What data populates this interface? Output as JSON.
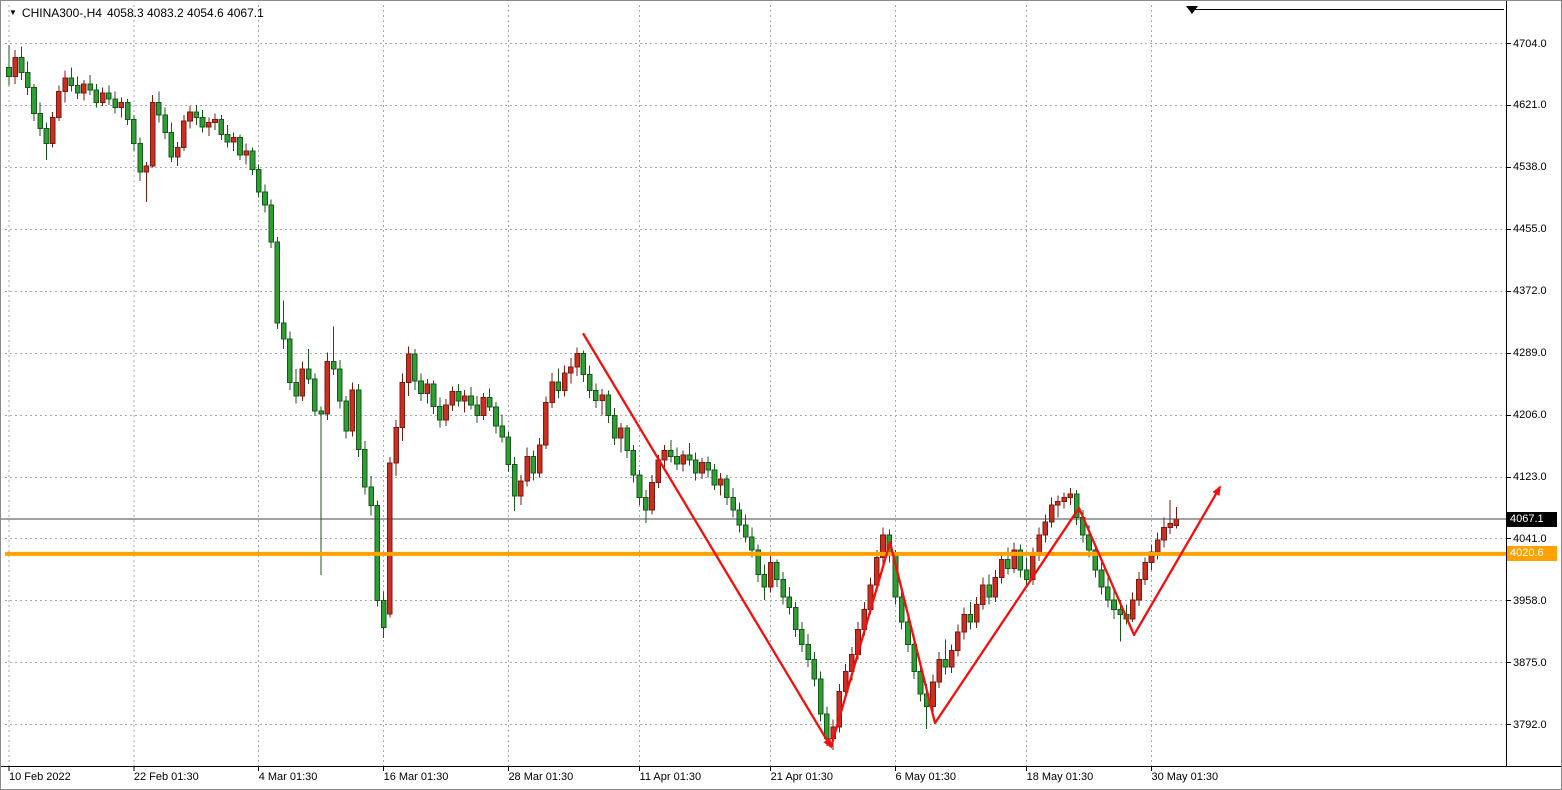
{
  "header": {
    "dropdown_icon": "▼",
    "symbol_period": "CHINA300-,H4",
    "ohlc": "4058.3 4083.2 4054.6 4067.1"
  },
  "price_axis": {
    "labels": [
      "4704.0",
      "4621.0",
      "4538.0",
      "4455.0",
      "4372.0",
      "4289.0",
      "4206.0",
      "4123.0",
      "4041.0",
      "3958.0",
      "3875.0",
      "3792.0"
    ]
  },
  "time_axis": {
    "labels": [
      "10 Feb 2022",
      "22 Feb 01:30",
      "4 Mar 01:30",
      "16 Mar 01:30",
      "28 Mar 01:30",
      "11 Apr 01:30",
      "21 Apr 01:30",
      "6 May 01:30",
      "18 May 01:30",
      "30 May 01:30"
    ]
  },
  "overlays": {
    "current_price": {
      "value": "4067.1",
      "color": "#000000",
      "line_color": "#444444"
    },
    "horizontal_line": {
      "value": "4020.6",
      "color": "#ffa200"
    }
  },
  "annotations": {
    "trend_arrows": {
      "color": "#f60d0d",
      "segments": [
        [
          [
            582,
            4316
          ],
          [
            830,
            3762
          ]
        ],
        [
          [
            830,
            3762
          ],
          [
            889,
            4036
          ],
          [
            934,
            3794
          ],
          [
            1078,
            4082
          ],
          [
            1133,
            3912
          ],
          [
            1219,
            4110
          ]
        ]
      ]
    },
    "top_object": {
      "color": "#000000"
    }
  },
  "chart_data": {
    "type": "candlestick",
    "symbol": "CHINA300-",
    "timeframe": "H4",
    "up_color": "#cc2e21",
    "down_color": "#2f9e34",
    "up_border": "#7a1a10",
    "down_border": "#14581a",
    "ylim": [
      3736,
      4748
    ],
    "grid": true,
    "last_candle": {
      "open": 4058.3,
      "high": 4083.2,
      "low": 4054.6,
      "close": 4067.1
    },
    "x_tick_indices": [
      0,
      20,
      40,
      60,
      80,
      101,
      122,
      142,
      163,
      183
    ],
    "candles": [
      [
        4672,
        4702,
        4648,
        4660
      ],
      [
        4660,
        4695,
        4650,
        4685
      ],
      [
        4685,
        4700,
        4655,
        4665
      ],
      [
        4665,
        4680,
        4635,
        4645
      ],
      [
        4645,
        4650,
        4600,
        4610
      ],
      [
        4610,
        4625,
        4580,
        4590
      ],
      [
        4590,
        4598,
        4548,
        4570
      ],
      [
        4570,
        4612,
        4565,
        4605
      ],
      [
        4605,
        4648,
        4600,
        4640
      ],
      [
        4640,
        4668,
        4625,
        4658
      ],
      [
        4658,
        4672,
        4640,
        4648
      ],
      [
        4648,
        4660,
        4630,
        4638
      ],
      [
        4638,
        4655,
        4628,
        4650
      ],
      [
        4650,
        4662,
        4635,
        4642
      ],
      [
        4642,
        4650,
        4618,
        4625
      ],
      [
        4625,
        4645,
        4620,
        4638
      ],
      [
        4638,
        4648,
        4622,
        4630
      ],
      [
        4630,
        4640,
        4610,
        4618
      ],
      [
        4618,
        4632,
        4605,
        4625
      ],
      [
        4625,
        4630,
        4595,
        4602
      ],
      [
        4602,
        4608,
        4560,
        4570
      ],
      [
        4570,
        4578,
        4520,
        4532
      ],
      [
        4532,
        4545,
        4492,
        4540
      ],
      [
        4540,
        4635,
        4538,
        4625
      ],
      [
        4625,
        4640,
        4598,
        4608
      ],
      [
        4608,
        4618,
        4576,
        4585
      ],
      [
        4585,
        4598,
        4545,
        4552
      ],
      [
        4552,
        4572,
        4540,
        4565
      ],
      [
        4565,
        4608,
        4560,
        4600
      ],
      [
        4600,
        4620,
        4590,
        4612
      ],
      [
        4612,
        4622,
        4595,
        4605
      ],
      [
        4605,
        4615,
        4585,
        4592
      ],
      [
        4592,
        4605,
        4580,
        4598
      ],
      [
        4598,
        4610,
        4588,
        4602
      ],
      [
        4602,
        4608,
        4575,
        4582
      ],
      [
        4582,
        4595,
        4565,
        4572
      ],
      [
        4572,
        4585,
        4560,
        4578
      ],
      [
        4578,
        4582,
        4548,
        4555
      ],
      [
        4555,
        4570,
        4542,
        4560
      ],
      [
        4560,
        4565,
        4528,
        4535
      ],
      [
        4535,
        4542,
        4498,
        4505
      ],
      [
        4505,
        4515,
        4478,
        4488
      ],
      [
        4488,
        4495,
        4430,
        4438
      ],
      [
        4438,
        4445,
        4322,
        4330
      ],
      [
        4330,
        4360,
        4295,
        4308
      ],
      [
        4308,
        4318,
        4240,
        4250
      ],
      [
        4250,
        4268,
        4222,
        4232
      ],
      [
        4232,
        4278,
        4225,
        4268
      ],
      [
        4268,
        4295,
        4248,
        4255
      ],
      [
        4255,
        4262,
        4205,
        4212
      ],
      [
        4212,
        4218,
        3992,
        4208
      ],
      [
        4208,
        4290,
        4200,
        4278
      ],
      [
        4278,
        4325,
        4260,
        4268
      ],
      [
        4268,
        4280,
        4215,
        4225
      ],
      [
        4225,
        4232,
        4175,
        4185
      ],
      [
        4185,
        4250,
        4178,
        4240
      ],
      [
        4240,
        4248,
        4150,
        4160
      ],
      [
        4160,
        4172,
        4100,
        4110
      ],
      [
        4110,
        4125,
        4072,
        4085
      ],
      [
        4085,
        4092,
        3950,
        3958
      ],
      [
        3958,
        3970,
        3908,
        3922
      ],
      [
        3940,
        4150,
        3935,
        4142
      ],
      [
        4142,
        4200,
        4125,
        4190
      ],
      [
        4190,
        4262,
        4172,
        4250
      ],
      [
        4250,
        4298,
        4232,
        4288
      ],
      [
        4288,
        4295,
        4240,
        4252
      ],
      [
        4252,
        4262,
        4225,
        4235
      ],
      [
        4235,
        4255,
        4222,
        4248
      ],
      [
        4248,
        4253,
        4208,
        4218
      ],
      [
        4218,
        4230,
        4190,
        4200
      ],
      [
        4200,
        4228,
        4192,
        4220
      ],
      [
        4220,
        4245,
        4212,
        4238
      ],
      [
        4238,
        4248,
        4218,
        4225
      ],
      [
        4225,
        4240,
        4210,
        4232
      ],
      [
        4232,
        4244,
        4214,
        4220
      ],
      [
        4220,
        4232,
        4196,
        4206
      ],
      [
        4206,
        4236,
        4200,
        4230
      ],
      [
        4230,
        4242,
        4212,
        4217
      ],
      [
        4217,
        4224,
        4182,
        4192
      ],
      [
        4192,
        4207,
        4170,
        4177
      ],
      [
        4177,
        4184,
        4130,
        4140
      ],
      [
        4140,
        4150,
        4078,
        4098
      ],
      [
        4098,
        4126,
        4086,
        4118
      ],
      [
        4118,
        4163,
        4111,
        4151
      ],
      [
        4151,
        4159,
        4119,
        4129
      ],
      [
        4129,
        4176,
        4123,
        4166
      ],
      [
        4166,
        4231,
        4161,
        4223
      ],
      [
        4223,
        4263,
        4216,
        4251
      ],
      [
        4251,
        4269,
        4229,
        4239
      ],
      [
        4239,
        4273,
        4231,
        4263
      ],
      [
        4263,
        4283,
        4249,
        4271
      ],
      [
        4271,
        4297,
        4259,
        4289
      ],
      [
        4289,
        4293,
        4251,
        4261
      ],
      [
        4261,
        4273,
        4229,
        4239
      ],
      [
        4239,
        4249,
        4216,
        4226
      ],
      [
        4226,
        4241,
        4206,
        4233
      ],
      [
        4233,
        4239,
        4196,
        4206
      ],
      [
        4206,
        4216,
        4166,
        4176
      ],
      [
        4176,
        4196,
        4156,
        4189
      ],
      [
        4189,
        4193,
        4149,
        4159
      ],
      [
        4159,
        4166,
        4116,
        4126
      ],
      [
        4126,
        4133,
        4086,
        4096
      ],
      [
        4096,
        4106,
        4062,
        4079
      ],
      [
        4079,
        4126,
        4073,
        4116
      ],
      [
        4116,
        4153,
        4109,
        4146
      ],
      [
        4146,
        4166,
        4136,
        4159
      ],
      [
        4159,
        4173,
        4143,
        4151
      ],
      [
        4151,
        4163,
        4133,
        4141
      ],
      [
        4141,
        4159,
        4131,
        4153
      ],
      [
        4153,
        4169,
        4139,
        4146
      ],
      [
        4146,
        4156,
        4119,
        4129
      ],
      [
        4129,
        4149,
        4121,
        4143
      ],
      [
        4143,
        4151,
        4123,
        4133
      ],
      [
        4133,
        4141,
        4106,
        4113
      ],
      [
        4113,
        4129,
        4099,
        4121
      ],
      [
        4121,
        4126,
        4086,
        4096
      ],
      [
        4096,
        4109,
        4069,
        4079
      ],
      [
        4079,
        4089,
        4049,
        4059
      ],
      [
        4059,
        4073,
        4036,
        4043
      ],
      [
        4043,
        4056,
        4016,
        4026
      ],
      [
        4026,
        4033,
        3983,
        3993
      ],
      [
        3993,
        4006,
        3959,
        3976
      ],
      [
        3976,
        4019,
        3969,
        4009
      ],
      [
        4009,
        4013,
        3976,
        3986
      ],
      [
        3986,
        3996,
        3953,
        3963
      ],
      [
        3963,
        3976,
        3939,
        3949
      ],
      [
        3949,
        3956,
        3909,
        3919
      ],
      [
        3919,
        3929,
        3889,
        3899
      ],
      [
        3899,
        3913,
        3869,
        3879
      ],
      [
        3879,
        3889,
        3843,
        3853
      ],
      [
        3853,
        3863,
        3796,
        3806
      ],
      [
        3806,
        3816,
        3763,
        3773
      ],
      [
        3773,
        3799,
        3758,
        3789
      ],
      [
        3789,
        3846,
        3781,
        3836
      ],
      [
        3836,
        3873,
        3826,
        3863
      ],
      [
        3863,
        3896,
        3851,
        3886
      ],
      [
        3886,
        3929,
        3879,
        3919
      ],
      [
        3919,
        3956,
        3911,
        3946
      ],
      [
        3946,
        3989,
        3939,
        3979
      ],
      [
        3979,
        4026,
        3971,
        4016
      ],
      [
        4016,
        4056,
        4006,
        4046
      ],
      [
        4046,
        4053,
        4009,
        4019
      ],
      [
        4019,
        4026,
        3953,
        3963
      ],
      [
        3963,
        3976,
        3919,
        3929
      ],
      [
        3929,
        3943,
        3889,
        3899
      ],
      [
        3899,
        3913,
        3853,
        3863
      ],
      [
        3863,
        3876,
        3823,
        3833
      ],
      [
        3833,
        3846,
        3786,
        3816
      ],
      [
        3816,
        3859,
        3809,
        3849
      ],
      [
        3849,
        3889,
        3841,
        3879
      ],
      [
        3879,
        3906,
        3859,
        3869
      ],
      [
        3869,
        3899,
        3861,
        3891
      ],
      [
        3891,
        3926,
        3883,
        3916
      ],
      [
        3916,
        3949,
        3906,
        3939
      ],
      [
        3939,
        3956,
        3919,
        3929
      ],
      [
        3929,
        3963,
        3921,
        3953
      ],
      [
        3953,
        3989,
        3946,
        3979
      ],
      [
        3979,
        3993,
        3953,
        3963
      ],
      [
        3963,
        3999,
        3956,
        3989
      ],
      [
        3989,
        4023,
        3981,
        4013
      ],
      [
        4013,
        4029,
        3993,
        4001
      ],
      [
        4001,
        4036,
        3995,
        4026
      ],
      [
        4026,
        4033,
        3989,
        3999
      ],
      [
        3999,
        4016,
        3976,
        3986
      ],
      [
        3986,
        4029,
        3979,
        4019
      ],
      [
        4019,
        4056,
        4011,
        4046
      ],
      [
        4046,
        4073,
        4036,
        4063
      ],
      [
        4063,
        4096,
        4056,
        4086
      ],
      [
        4086,
        4099,
        4069,
        4091
      ],
      [
        4091,
        4103,
        4081,
        4096
      ],
      [
        4096,
        4109,
        4086,
        4101
      ],
      [
        4101,
        4106,
        4059,
        4069
      ],
      [
        4069,
        4079,
        4036,
        4046
      ],
      [
        4046,
        4059,
        4016,
        4026
      ],
      [
        4026,
        4033,
        3989,
        3999
      ],
      [
        3999,
        4009,
        3966,
        3976
      ],
      [
        3976,
        3989,
        3949,
        3959
      ],
      [
        3959,
        3973,
        3933,
        3946
      ],
      [
        3946,
        3959,
        3903,
        3939
      ],
      [
        3939,
        3953,
        3926,
        3933
      ],
      [
        3933,
        3969,
        3929,
        3959
      ],
      [
        3959,
        3996,
        3951,
        3986
      ],
      [
        3986,
        4016,
        3979,
        4009
      ],
      [
        4009,
        4033,
        3999,
        4023
      ],
      [
        4023,
        4049,
        4013,
        4039
      ],
      [
        4039,
        4069,
        4029,
        4056
      ],
      [
        4056,
        4093,
        4047,
        4061
      ],
      [
        4058.3,
        4083.2,
        4054.6,
        4067.1
      ]
    ]
  }
}
